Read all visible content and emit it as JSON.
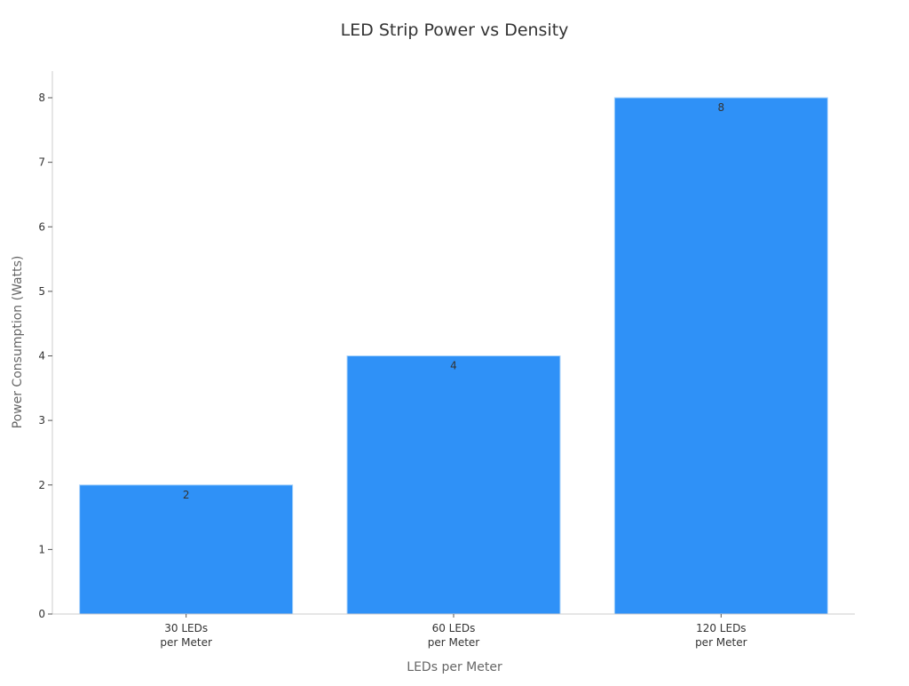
{
  "chart_data": {
    "type": "bar",
    "title": "LED Strip Power vs Density",
    "xlabel": "LEDs per Meter",
    "ylabel": "Power Consumption (Watts)",
    "categories": [
      [
        "30 LEDs",
        "per Meter"
      ],
      [
        "60 LEDs",
        "per Meter"
      ],
      [
        "120 LEDs",
        "per Meter"
      ]
    ],
    "values": [
      2,
      4,
      8
    ],
    "data_labels": [
      "2",
      "4",
      "8"
    ],
    "ylim": [
      0,
      8
    ],
    "yticks": [
      0,
      1,
      2,
      3,
      4,
      5,
      6,
      7,
      8
    ],
    "grid": false,
    "legend": "none",
    "colors": {
      "bar": "#2f91f7",
      "bar_edge": "#a9d3fb",
      "axis": "#cccccc",
      "text": "#333333",
      "label": "#666666"
    }
  }
}
